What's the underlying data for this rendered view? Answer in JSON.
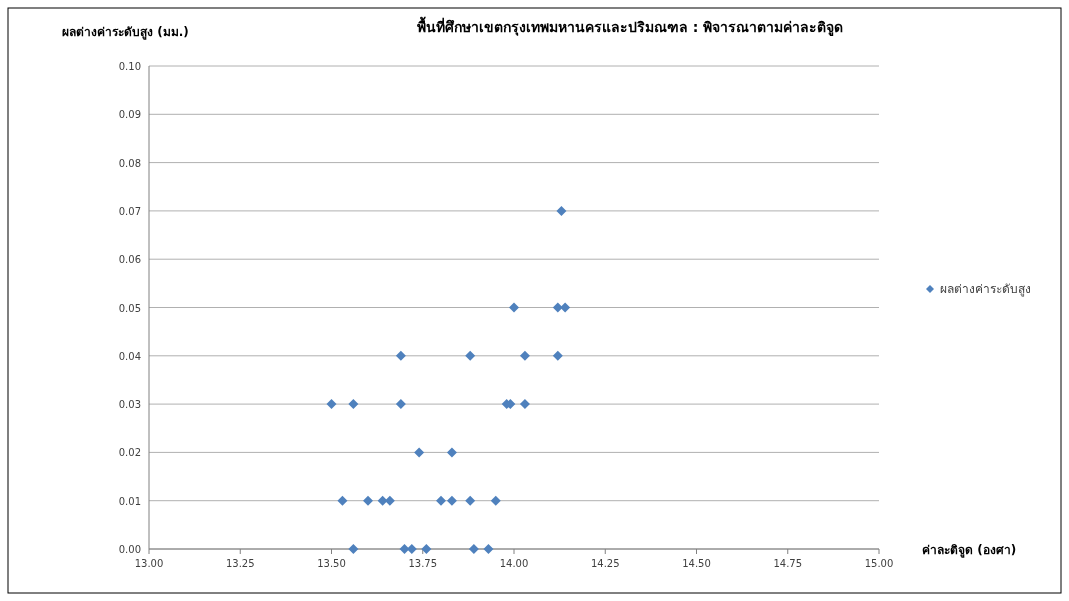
{
  "chart_data": {
    "type": "scatter",
    "title": "พื้นที่ศึกษาเขตกรุงเทพมหานครและปริมณฑล  : พิจารณาตามค่าละติจูด",
    "ylabel": "ผลต่างค่าระดับสูง (มม.)",
    "xlabel": "ค่าละติจูด (องศา)",
    "x": [
      14.13,
      14.0,
      14.12,
      14.14,
      13.69,
      13.88,
      14.03,
      14.12,
      13.5,
      13.56,
      13.69,
      13.98,
      13.99,
      14.03,
      13.74,
      13.83,
      13.53,
      13.6,
      13.64,
      13.66,
      13.8,
      13.83,
      13.88,
      13.95,
      13.56,
      13.7,
      13.72,
      13.76,
      13.89,
      13.93
    ],
    "series": [
      {
        "name": "ผลต่างค่าระดับสูง",
        "color": "#4f81bd",
        "values": [
          0.07,
          0.05,
          0.05,
          0.05,
          0.04,
          0.04,
          0.04,
          0.04,
          0.03,
          0.03,
          0.03,
          0.03,
          0.03,
          0.03,
          0.02,
          0.02,
          0.01,
          0.01,
          0.01,
          0.01,
          0.01,
          0.01,
          0.01,
          0.01,
          0,
          0,
          0,
          0,
          0,
          0
        ]
      }
    ],
    "xlim": [
      13,
      15
    ],
    "xticks": [
      {
        "value": 13,
        "label": "13.00"
      },
      {
        "value": 13.25,
        "label": "13.25"
      },
      {
        "value": 13.5,
        "label": "13.50"
      },
      {
        "value": 13.75,
        "label": "13.75"
      },
      {
        "value": 14,
        "label": "14.00"
      },
      {
        "value": 14.25,
        "label": "14.25"
      },
      {
        "value": 14.5,
        "label": "14.50"
      },
      {
        "value": 14.75,
        "label": "14.75"
      },
      {
        "value": 15,
        "label": "15.00"
      }
    ],
    "ylim": [
      0,
      0.1
    ],
    "yticks": [
      {
        "value": 0,
        "label": "0.00"
      },
      {
        "value": 0.01,
        "label": "0.01"
      },
      {
        "value": 0.02,
        "label": "0.02"
      },
      {
        "value": 0.03,
        "label": "0.03"
      },
      {
        "value": 0.04,
        "label": "0.04"
      },
      {
        "value": 0.05,
        "label": "0.05"
      },
      {
        "value": 0.06,
        "label": "0.06"
      },
      {
        "value": 0.07,
        "label": "0.07"
      },
      {
        "value": 0.08,
        "label": "0.08"
      },
      {
        "value": 0.09,
        "label": "0.09"
      },
      {
        "value": 0.1,
        "label": "0.10"
      }
    ],
    "grid": "y",
    "legend": "right",
    "marker": "diamond"
  }
}
